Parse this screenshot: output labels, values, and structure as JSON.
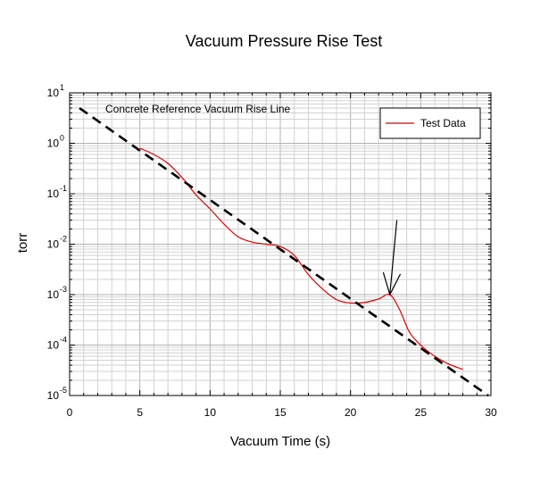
{
  "chart_data": {
    "type": "line",
    "title": "Vacuum Pressure Rise Test",
    "xlabel": "Vacuum Time (s)",
    "ylabel": "torr",
    "xlim": [
      0,
      30
    ],
    "ylim": [
      1e-05,
      10
    ],
    "yscale": "log",
    "x_ticks": [
      0,
      5,
      10,
      15,
      20,
      25,
      30
    ],
    "x_tick_labels": [
      "0",
      "5",
      "10",
      "15",
      "20",
      "25",
      "30"
    ],
    "y_tick_mantissa": "10",
    "y_tick_exponents": [
      "-5",
      "-4",
      "-3",
      "-2",
      "-1",
      "0",
      "1"
    ],
    "grid": true,
    "legend_position": "top-right",
    "annotation": "Concrete Reference Vacuum Rise Line",
    "series": [
      {
        "name": "Test Data",
        "color": "#e00000",
        "style": "solid",
        "x": [
          5.0,
          6.0,
          7.0,
          8.0,
          9.0,
          10.0,
          11.0,
          12.0,
          13.0,
          14.0,
          15.0,
          16.0,
          17.0,
          18.0,
          19.0,
          20.0,
          21.0,
          22.0,
          22.8,
          23.5,
          24.2,
          25.0,
          26.0,
          27.0,
          28.0
        ],
        "y": [
          0.8,
          0.6,
          0.4,
          0.21,
          0.095,
          0.05,
          0.025,
          0.014,
          0.011,
          0.01,
          0.009,
          0.006,
          0.0025,
          0.0013,
          0.0008,
          0.00068,
          0.0007,
          0.00082,
          0.001,
          0.0005,
          0.00018,
          0.0001,
          6e-05,
          4.2e-05,
          3.3e-05
        ]
      },
      {
        "name": "",
        "color": "#000000",
        "style": "dashed",
        "x": [
          0.7,
          29.8
        ],
        "y": [
          5.0,
          1e-05
        ]
      }
    ],
    "arrow": {
      "from": [
        23.3,
        0.03
      ],
      "to": [
        22.8,
        0.001
      ]
    }
  }
}
